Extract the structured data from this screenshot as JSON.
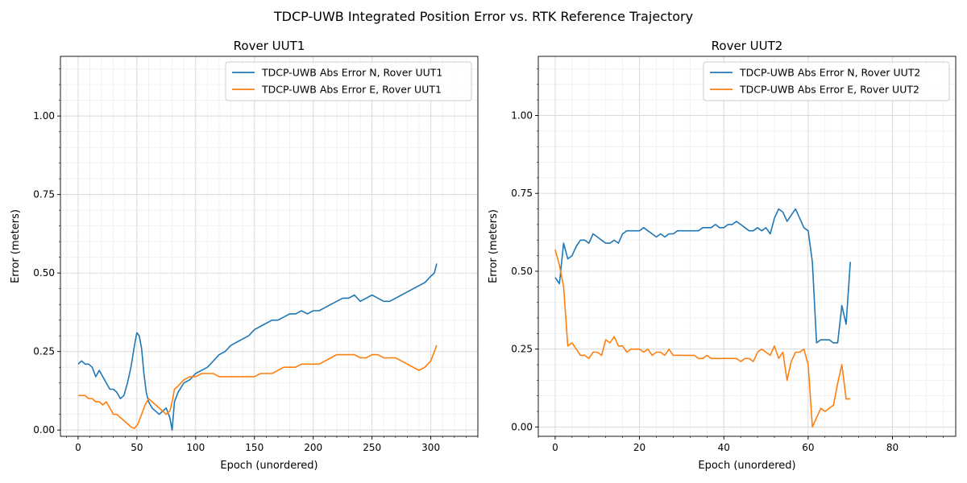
{
  "figure": {
    "title": "TDCP-UWB Integrated Position Error vs. RTK Reference Trajectory"
  },
  "colors": {
    "series_n": "#1f77b4",
    "series_e": "#ff7f0e",
    "grid": "#d9d9d9"
  },
  "chart_data": [
    {
      "type": "line",
      "title": "Rover UUT1",
      "xlabel": "Epoch (unordered)",
      "ylabel": "Error (meters)",
      "xlim": [
        -15,
        340
      ],
      "ylim": [
        -0.02,
        1.19
      ],
      "xticks": [
        0,
        50,
        100,
        150,
        200,
        250,
        300
      ],
      "xtick_labels": [
        "0",
        "50",
        "100",
        "150",
        "200",
        "250",
        "300"
      ],
      "yticks": [
        0.0,
        0.25,
        0.5,
        0.75,
        1.0
      ],
      "ytick_labels": [
        "0.00",
        "0.25",
        "0.50",
        "0.75",
        "1.00"
      ],
      "grid": true,
      "legend": "upper right",
      "series": [
        {
          "name": "TDCP-UWB Abs Error N, Rover UUT1",
          "color": "#1f77b4",
          "x": [
            0,
            3,
            6,
            9,
            12,
            15,
            18,
            21,
            24,
            27,
            30,
            33,
            36,
            39,
            42,
            45,
            48,
            50,
            52,
            54,
            56,
            58,
            60,
            63,
            66,
            69,
            72,
            75,
            78,
            80,
            82,
            85,
            90,
            95,
            100,
            105,
            110,
            115,
            120,
            125,
            130,
            135,
            140,
            145,
            150,
            155,
            160,
            165,
            170,
            175,
            180,
            185,
            190,
            195,
            200,
            205,
            210,
            215,
            220,
            225,
            230,
            235,
            240,
            245,
            250,
            255,
            260,
            265,
            270,
            275,
            280,
            285,
            290,
            295,
            300,
            303,
            305
          ],
          "values": [
            0.21,
            0.22,
            0.21,
            0.21,
            0.2,
            0.17,
            0.19,
            0.17,
            0.15,
            0.13,
            0.13,
            0.12,
            0.1,
            0.11,
            0.15,
            0.2,
            0.27,
            0.31,
            0.3,
            0.26,
            0.18,
            0.12,
            0.09,
            0.07,
            0.06,
            0.05,
            0.06,
            0.07,
            0.04,
            0.0,
            0.09,
            0.12,
            0.15,
            0.16,
            0.18,
            0.19,
            0.2,
            0.22,
            0.24,
            0.25,
            0.27,
            0.28,
            0.29,
            0.3,
            0.32,
            0.33,
            0.34,
            0.35,
            0.35,
            0.36,
            0.37,
            0.37,
            0.38,
            0.37,
            0.38,
            0.38,
            0.39,
            0.4,
            0.41,
            0.42,
            0.42,
            0.43,
            0.41,
            0.42,
            0.43,
            0.42,
            0.41,
            0.41,
            0.42,
            0.43,
            0.44,
            0.45,
            0.46,
            0.47,
            0.49,
            0.5,
            0.53
          ]
        },
        {
          "name": "TDCP-UWB Abs Error E, Rover UUT1",
          "color": "#ff7f0e",
          "x": [
            0,
            3,
            6,
            9,
            12,
            15,
            18,
            21,
            24,
            27,
            30,
            33,
            36,
            39,
            42,
            45,
            48,
            51,
            54,
            57,
            60,
            63,
            66,
            69,
            72,
            75,
            78,
            80,
            82,
            85,
            90,
            95,
            100,
            105,
            110,
            115,
            120,
            125,
            130,
            135,
            140,
            145,
            150,
            155,
            160,
            165,
            170,
            175,
            180,
            185,
            190,
            195,
            200,
            205,
            210,
            215,
            220,
            225,
            230,
            235,
            240,
            245,
            250,
            255,
            260,
            265,
            270,
            275,
            280,
            285,
            290,
            295,
            300,
            303,
            305
          ],
          "values": [
            0.11,
            0.11,
            0.11,
            0.1,
            0.1,
            0.09,
            0.09,
            0.08,
            0.09,
            0.07,
            0.05,
            0.05,
            0.04,
            0.03,
            0.02,
            0.01,
            0.005,
            0.02,
            0.05,
            0.08,
            0.1,
            0.09,
            0.08,
            0.07,
            0.06,
            0.05,
            0.06,
            0.09,
            0.13,
            0.14,
            0.16,
            0.17,
            0.17,
            0.18,
            0.18,
            0.18,
            0.17,
            0.17,
            0.17,
            0.17,
            0.17,
            0.17,
            0.17,
            0.18,
            0.18,
            0.18,
            0.19,
            0.2,
            0.2,
            0.2,
            0.21,
            0.21,
            0.21,
            0.21,
            0.22,
            0.23,
            0.24,
            0.24,
            0.24,
            0.24,
            0.23,
            0.23,
            0.24,
            0.24,
            0.23,
            0.23,
            0.23,
            0.22,
            0.21,
            0.2,
            0.19,
            0.2,
            0.22,
            0.25,
            0.27
          ]
        }
      ]
    },
    {
      "type": "line",
      "title": "Rover UUT2",
      "xlabel": "Epoch (unordered)",
      "ylabel": "Error (meters)",
      "xlim": [
        -4,
        95
      ],
      "ylim": [
        -0.03,
        1.19
      ],
      "xticks": [
        0,
        20,
        40,
        60,
        80
      ],
      "xtick_labels": [
        "0",
        "20",
        "40",
        "60",
        "80"
      ],
      "yticks": [
        0.0,
        0.25,
        0.5,
        0.75,
        1.0
      ],
      "ytick_labels": [
        "0.00",
        "0.25",
        "0.50",
        "0.75",
        "1.00"
      ],
      "grid": true,
      "legend": "upper right",
      "series": [
        {
          "name": "TDCP-UWB Abs Error N, Rover UUT2",
          "color": "#1f77b4",
          "x": [
            0,
            1,
            2,
            3,
            4,
            5,
            6,
            7,
            8,
            9,
            10,
            11,
            12,
            13,
            14,
            15,
            16,
            17,
            18,
            19,
            20,
            21,
            22,
            23,
            24,
            25,
            26,
            27,
            28,
            29,
            30,
            31,
            32,
            33,
            34,
            35,
            36,
            37,
            38,
            39,
            40,
            41,
            42,
            43,
            44,
            45,
            46,
            47,
            48,
            49,
            50,
            51,
            52,
            53,
            54,
            55,
            56,
            57,
            58,
            59,
            60,
            61,
            62,
            63,
            64,
            65,
            66,
            67,
            68,
            69,
            70
          ],
          "values": [
            0.48,
            0.46,
            0.59,
            0.54,
            0.55,
            0.58,
            0.6,
            0.6,
            0.59,
            0.62,
            0.61,
            0.6,
            0.59,
            0.59,
            0.6,
            0.59,
            0.62,
            0.63,
            0.63,
            0.63,
            0.63,
            0.64,
            0.63,
            0.62,
            0.61,
            0.62,
            0.61,
            0.62,
            0.62,
            0.63,
            0.63,
            0.63,
            0.63,
            0.63,
            0.63,
            0.64,
            0.64,
            0.64,
            0.65,
            0.64,
            0.64,
            0.65,
            0.65,
            0.66,
            0.65,
            0.64,
            0.63,
            0.63,
            0.64,
            0.63,
            0.64,
            0.62,
            0.67,
            0.7,
            0.69,
            0.66,
            0.68,
            0.7,
            0.67,
            0.64,
            0.63,
            0.53,
            0.27,
            0.28,
            0.28,
            0.28,
            0.27,
            0.27,
            0.39,
            0.33,
            0.53
          ]
        },
        {
          "name": "TDCP-UWB Abs Error E, Rover UUT2",
          "color": "#ff7f0e",
          "x": [
            0,
            1,
            2,
            3,
            4,
            5,
            6,
            7,
            8,
            9,
            10,
            11,
            12,
            13,
            14,
            15,
            16,
            17,
            18,
            19,
            20,
            21,
            22,
            23,
            24,
            25,
            26,
            27,
            28,
            29,
            30,
            31,
            32,
            33,
            34,
            35,
            36,
            37,
            38,
            39,
            40,
            41,
            42,
            43,
            44,
            45,
            46,
            47,
            48,
            49,
            50,
            51,
            52,
            53,
            54,
            55,
            56,
            57,
            58,
            59,
            60,
            61,
            62,
            63,
            64,
            65,
            66,
            67,
            68,
            69,
            70
          ],
          "values": [
            0.57,
            0.52,
            0.45,
            0.26,
            0.27,
            0.25,
            0.23,
            0.23,
            0.22,
            0.24,
            0.24,
            0.23,
            0.28,
            0.27,
            0.29,
            0.26,
            0.26,
            0.24,
            0.25,
            0.25,
            0.25,
            0.24,
            0.25,
            0.23,
            0.24,
            0.24,
            0.23,
            0.25,
            0.23,
            0.23,
            0.23,
            0.23,
            0.23,
            0.23,
            0.22,
            0.22,
            0.23,
            0.22,
            0.22,
            0.22,
            0.22,
            0.22,
            0.22,
            0.22,
            0.21,
            0.22,
            0.22,
            0.21,
            0.24,
            0.25,
            0.24,
            0.23,
            0.26,
            0.22,
            0.24,
            0.15,
            0.21,
            0.24,
            0.24,
            0.25,
            0.2,
            0.0,
            0.03,
            0.06,
            0.05,
            0.06,
            0.07,
            0.14,
            0.2,
            0.09,
            0.09
          ]
        }
      ]
    }
  ]
}
